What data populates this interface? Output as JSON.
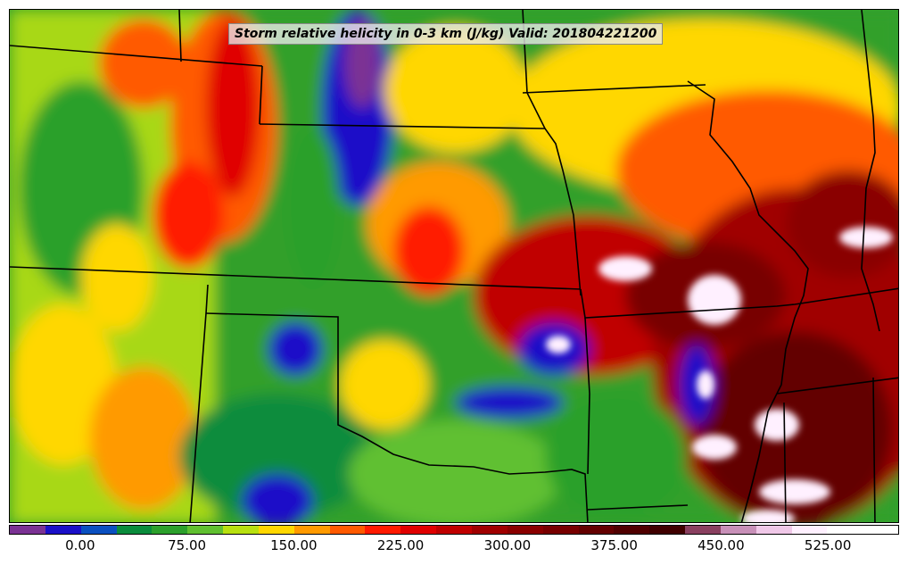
{
  "map": {
    "title": "Storm relative helicity in 0-3 km (J/kg) Valid: 201804221200",
    "field": "storm_relative_helicity_0_3km",
    "region": "southern-central-us"
  },
  "colorbar": {
    "min": -50,
    "max": 575,
    "step": 25,
    "ticks": [
      "0.00",
      "75.00",
      "150.00",
      "225.00",
      "300.00",
      "375.00",
      "450.00",
      "525.00"
    ],
    "tick_values": [
      0,
      75,
      150,
      225,
      300,
      375,
      450,
      525
    ],
    "colors": [
      "#7b3294",
      "#1a10c8",
      "#0a50c0",
      "#0a8c3c",
      "#2ca02c",
      "#60c030",
      "#b8e010",
      "#ffd700",
      "#ff9a00",
      "#ff5a00",
      "#ff1a00",
      "#e00000",
      "#c00000",
      "#a00000",
      "#8a0000",
      "#780000",
      "#640000",
      "#500000",
      "#400000",
      "#8a4060",
      "#c890b8",
      "#f0c8e8",
      "#fff0ff",
      "#ffffff",
      "#ffffff"
    ]
  }
}
